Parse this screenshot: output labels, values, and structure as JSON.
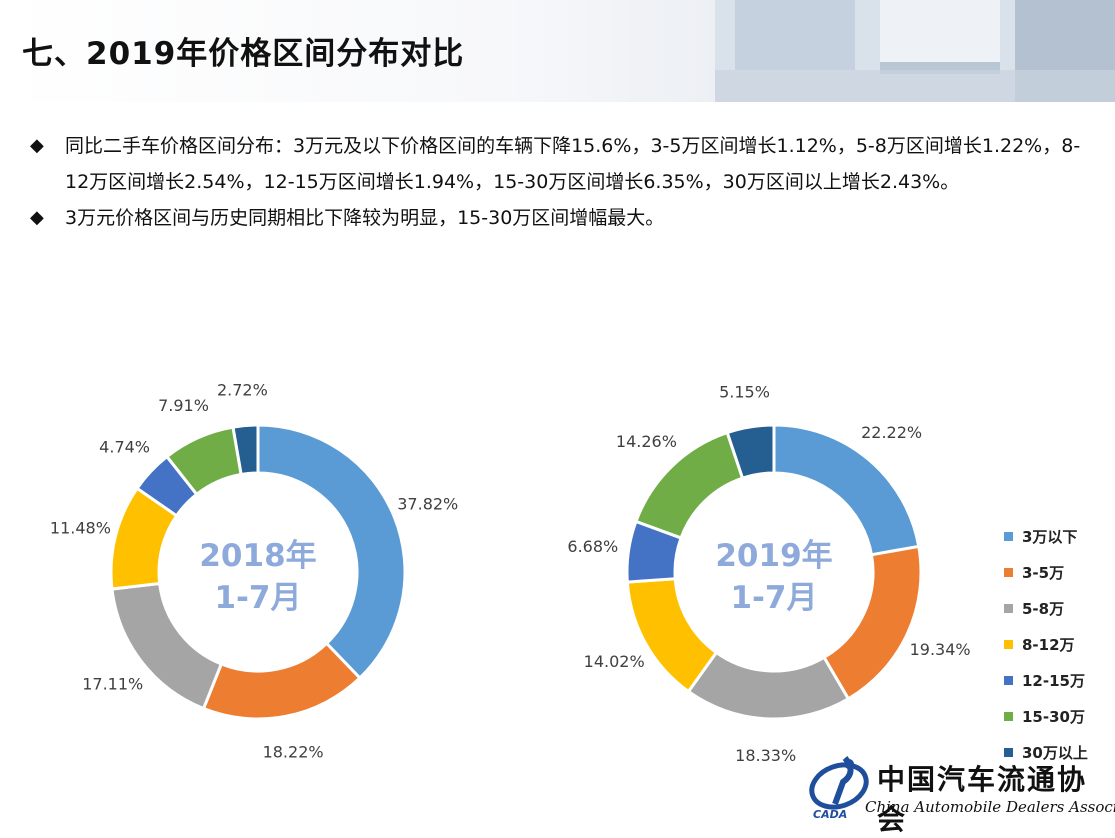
{
  "header": {
    "title": "七、2019年价格区间分布对比"
  },
  "bullets": [
    "同比二手车价格区间分布：3万元及以下价格区间的车辆下降15.6%，3-5万区间增长1.12%，5-8万区间增长1.22%，8-12万区间增长2.54%，12-15万区间增长1.94%，15-30万区间增长6.35%，30万区间以上增长2.43%。",
    "3万元价格区间与历史同期相比下降较为明显，15-30万区间增幅最大。"
  ],
  "bullet_icon": "diamond-icon",
  "chart_data": [
    {
      "type": "pie",
      "donut": true,
      "center_label": [
        "2018年",
        "1-7月"
      ],
      "categories": [
        "3万以下",
        "3-5万",
        "5-8万",
        "8-12万",
        "12-15万",
        "15-30万",
        "30万以上"
      ],
      "values": [
        37.82,
        18.22,
        17.11,
        11.48,
        4.74,
        7.91,
        2.72
      ],
      "value_labels": [
        "37.82%",
        "18.22%",
        "17.11%",
        "11.48%",
        "4.74%",
        "7.91%",
        "2.72%"
      ]
    },
    {
      "type": "pie",
      "donut": true,
      "center_label": [
        "2019年",
        "1-7月"
      ],
      "categories": [
        "3万以下",
        "3-5万",
        "5-8万",
        "8-12万",
        "12-15万",
        "15-30万",
        "30万以上"
      ],
      "values": [
        22.22,
        19.34,
        18.33,
        14.02,
        6.68,
        14.26,
        5.15
      ],
      "value_labels": [
        "22.22%",
        "19.34%",
        "18.33%",
        "14.02%",
        "6.68%",
        "14.26%",
        "5.15%"
      ],
      "legend_position": "right"
    }
  ],
  "colors": [
    "#5B9BD5",
    "#ED7D31",
    "#A5A5A5",
    "#FFC000",
    "#4472C4",
    "#70AD47",
    "#255E91"
  ],
  "center_label_color": "#8EAADB",
  "legend": [
    "3万以下",
    "3-5万",
    "5-8万",
    "8-12万",
    "12-15万",
    "15-30万",
    "30万以上"
  ],
  "logo": {
    "cn": "中国汽车流通协会",
    "en": "China Automobile Dealers Association",
    "mark": "CADA"
  }
}
